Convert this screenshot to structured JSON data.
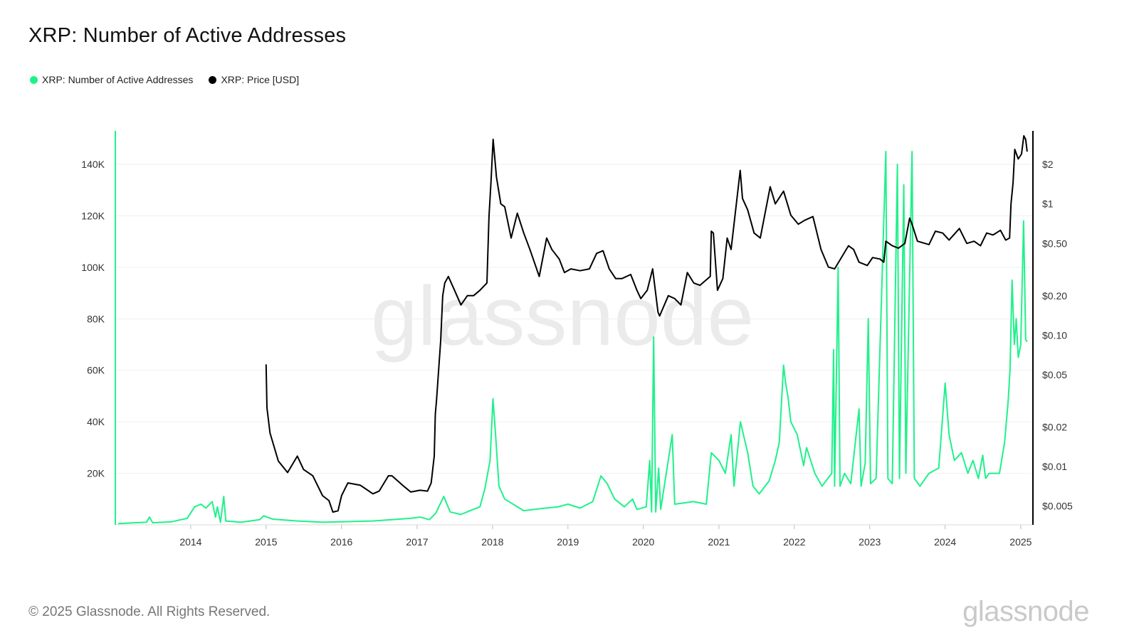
{
  "title": "XRP: Number of Active Addresses",
  "legend": [
    {
      "label": "XRP: Number of Active Addresses",
      "color": "#1ff18a",
      "icon": "dot-icon"
    },
    {
      "label": "XRP: Price [USD]",
      "color": "#000000",
      "icon": "dot-icon"
    }
  ],
  "watermark": "glassnode",
  "footer": "© 2025 Glassnode. All Rights Reserved.",
  "brand": "glassnode",
  "chart_data": {
    "type": "line",
    "x_ticks": [
      "2014",
      "2015",
      "2016",
      "2017",
      "2018",
      "2019",
      "2020",
      "2021",
      "2022",
      "2023",
      "2024",
      "2025"
    ],
    "y_left": {
      "ticks": [
        20000,
        40000,
        60000,
        80000,
        100000,
        120000,
        140000
      ],
      "tick_labels": [
        "20K",
        "40K",
        "60K",
        "80K",
        "100K",
        "120K",
        "140K"
      ],
      "range": [
        0,
        153000
      ]
    },
    "y_right": {
      "scale": "log",
      "ticks": [
        0.005,
        0.01,
        0.02,
        0.05,
        0.1,
        0.2,
        0.5,
        1,
        2
      ],
      "tick_labels": [
        "$0.005",
        "$0.01",
        "$0.02",
        "$0.05",
        "$0.10",
        "$0.20",
        "$0.50",
        "$1",
        "$2"
      ],
      "range": [
        0.0036,
        3.6
      ]
    },
    "grid": true,
    "legend_position": "top-left",
    "series": [
      {
        "name": "XRP: Number of Active Addresses",
        "axis": "left",
        "color": "#1ff18a",
        "points": [
          [
            "2013-01-15",
            500
          ],
          [
            "2013-06-01",
            1000
          ],
          [
            "2013-06-15",
            3000
          ],
          [
            "2013-07-01",
            800
          ],
          [
            "2013-10-01",
            1200
          ],
          [
            "2013-12-15",
            2500
          ],
          [
            "2014-01-20",
            7000
          ],
          [
            "2014-02-20",
            8000
          ],
          [
            "2014-03-15",
            6500
          ],
          [
            "2014-04-15",
            9000
          ],
          [
            "2014-05-01",
            3000
          ],
          [
            "2014-05-10",
            7000
          ],
          [
            "2014-05-25",
            1000
          ],
          [
            "2014-06-10",
            11000
          ],
          [
            "2014-06-20",
            1500
          ],
          [
            "2014-09-01",
            1000
          ],
          [
            "2014-12-01",
            2000
          ],
          [
            "2014-12-20",
            3500
          ],
          [
            "2015-02-01",
            2200
          ],
          [
            "2015-06-01",
            1500
          ],
          [
            "2015-10-01",
            1000
          ],
          [
            "2016-01-01",
            1200
          ],
          [
            "2016-06-01",
            1500
          ],
          [
            "2016-12-01",
            2500
          ],
          [
            "2017-01-15",
            3000
          ],
          [
            "2017-03-01",
            2000
          ],
          [
            "2017-04-01",
            4500
          ],
          [
            "2017-05-10",
            11000
          ],
          [
            "2017-06-10",
            5000
          ],
          [
            "2017-08-01",
            4000
          ],
          [
            "2017-09-15",
            5500
          ],
          [
            "2017-11-01",
            7000
          ],
          [
            "2017-11-25",
            14000
          ],
          [
            "2017-12-20",
            25000
          ],
          [
            "2018-01-03",
            49000
          ],
          [
            "2018-01-15",
            36000
          ],
          [
            "2018-02-01",
            15000
          ],
          [
            "2018-03-01",
            10000
          ],
          [
            "2018-06-01",
            5500
          ],
          [
            "2018-09-15",
            6500
          ],
          [
            "2018-11-15",
            7000
          ],
          [
            "2019-01-01",
            8000
          ],
          [
            "2019-03-01",
            6500
          ],
          [
            "2019-05-01",
            9000
          ],
          [
            "2019-06-10",
            19000
          ],
          [
            "2019-07-10",
            16000
          ],
          [
            "2019-08-15",
            10000
          ],
          [
            "2019-10-01",
            7000
          ],
          [
            "2019-11-10",
            10000
          ],
          [
            "2019-12-01",
            6000
          ],
          [
            "2020-01-15",
            7000
          ],
          [
            "2020-02-01",
            25000
          ],
          [
            "2020-02-10",
            5000
          ],
          [
            "2020-02-20",
            73000
          ],
          [
            "2020-03-01",
            5000
          ],
          [
            "2020-03-15",
            22000
          ],
          [
            "2020-03-25",
            6000
          ],
          [
            "2020-05-20",
            35000
          ],
          [
            "2020-06-01",
            8000
          ],
          [
            "2020-09-01",
            9000
          ],
          [
            "2020-11-01",
            8000
          ],
          [
            "2020-11-25",
            28000
          ],
          [
            "2021-01-01",
            25000
          ],
          [
            "2021-02-01",
            20000
          ],
          [
            "2021-03-01",
            35000
          ],
          [
            "2021-03-15",
            15000
          ],
          [
            "2021-04-15",
            40000
          ],
          [
            "2021-05-20",
            28000
          ],
          [
            "2021-06-15",
            15000
          ],
          [
            "2021-07-15",
            12000
          ],
          [
            "2021-09-01",
            17000
          ],
          [
            "2021-10-01",
            25000
          ],
          [
            "2021-10-20",
            32000
          ],
          [
            "2021-11-10",
            62000
          ],
          [
            "2021-11-20",
            55000
          ],
          [
            "2021-12-01",
            50000
          ],
          [
            "2021-12-15",
            40000
          ],
          [
            "2022-01-15",
            35000
          ],
          [
            "2022-02-15",
            23000
          ],
          [
            "2022-03-01",
            30000
          ],
          [
            "2022-04-10",
            20000
          ],
          [
            "2022-05-15",
            15000
          ],
          [
            "2022-07-01",
            20000
          ],
          [
            "2022-07-10",
            68000
          ],
          [
            "2022-07-15",
            15000
          ],
          [
            "2022-08-01",
            100000
          ],
          [
            "2022-08-10",
            15000
          ],
          [
            "2022-09-01",
            20000
          ],
          [
            "2022-10-01",
            16000
          ],
          [
            "2022-11-10",
            45000
          ],
          [
            "2022-11-20",
            15000
          ],
          [
            "2022-12-10",
            24000
          ],
          [
            "2022-12-25",
            80000
          ],
          [
            "2023-01-05",
            16000
          ],
          [
            "2023-02-01",
            18000
          ],
          [
            "2023-03-20",
            145000
          ],
          [
            "2023-03-30",
            18000
          ],
          [
            "2023-04-20",
            16000
          ],
          [
            "2023-05-15",
            140000
          ],
          [
            "2023-05-25",
            18000
          ],
          [
            "2023-06-15",
            132000
          ],
          [
            "2023-06-25",
            20000
          ],
          [
            "2023-07-25",
            145000
          ],
          [
            "2023-08-05",
            18000
          ],
          [
            "2023-09-01",
            15000
          ],
          [
            "2023-10-15",
            20000
          ],
          [
            "2023-12-01",
            22000
          ],
          [
            "2024-01-01",
            55000
          ],
          [
            "2024-01-20",
            35000
          ],
          [
            "2024-02-15",
            25000
          ],
          [
            "2024-03-20",
            28000
          ],
          [
            "2024-04-20",
            20000
          ],
          [
            "2024-05-15",
            25000
          ],
          [
            "2024-06-10",
            18000
          ],
          [
            "2024-07-01",
            27000
          ],
          [
            "2024-07-15",
            18000
          ],
          [
            "2024-08-01",
            20000
          ],
          [
            "2024-09-20",
            20000
          ],
          [
            "2024-10-15",
            32000
          ],
          [
            "2024-11-01",
            48000
          ],
          [
            "2024-11-10",
            60000
          ],
          [
            "2024-11-20",
            95000
          ],
          [
            "2024-12-01",
            70000
          ],
          [
            "2024-12-10",
            80000
          ],
          [
            "2024-12-20",
            65000
          ],
          [
            "2025-01-01",
            70000
          ],
          [
            "2025-01-15",
            118000
          ],
          [
            "2025-01-25",
            72000
          ],
          [
            "2025-02-01",
            71000
          ]
        ]
      },
      {
        "name": "XRP: Price [USD]",
        "axis": "right",
        "color": "#000000",
        "points": [
          [
            "2015-01-01",
            0.06
          ],
          [
            "2015-01-05",
            0.028
          ],
          [
            "2015-01-20",
            0.018
          ],
          [
            "2015-03-01",
            0.011
          ],
          [
            "2015-04-15",
            0.009
          ],
          [
            "2015-06-01",
            0.012
          ],
          [
            "2015-07-01",
            0.0095
          ],
          [
            "2015-08-15",
            0.0085
          ],
          [
            "2015-10-01",
            0.006
          ],
          [
            "2015-11-01",
            0.0055
          ],
          [
            "2015-11-20",
            0.0045
          ],
          [
            "2015-12-15",
            0.0046
          ],
          [
            "2016-01-01",
            0.006
          ],
          [
            "2016-02-01",
            0.0075
          ],
          [
            "2016-04-01",
            0.0072
          ],
          [
            "2016-06-01",
            0.0062
          ],
          [
            "2016-07-01",
            0.0065
          ],
          [
            "2016-08-15",
            0.0085
          ],
          [
            "2016-09-01",
            0.0085
          ],
          [
            "2016-11-01",
            0.007
          ],
          [
            "2016-12-01",
            0.0064
          ],
          [
            "2017-01-15",
            0.0066
          ],
          [
            "2017-02-20",
            0.0065
          ],
          [
            "2017-03-10",
            0.0075
          ],
          [
            "2017-03-25",
            0.012
          ],
          [
            "2017-03-30",
            0.025
          ],
          [
            "2017-04-05",
            0.032
          ],
          [
            "2017-04-25",
            0.09
          ],
          [
            "2017-05-05",
            0.2
          ],
          [
            "2017-05-15",
            0.25
          ],
          [
            "2017-06-01",
            0.28
          ],
          [
            "2017-07-01",
            0.22
          ],
          [
            "2017-08-01",
            0.17
          ],
          [
            "2017-09-01",
            0.2
          ],
          [
            "2017-10-01",
            0.2
          ],
          [
            "2017-11-01",
            0.22
          ],
          [
            "2017-12-05",
            0.25
          ],
          [
            "2017-12-15",
            0.8
          ],
          [
            "2017-12-25",
            1.5
          ],
          [
            "2018-01-04",
            3.1
          ],
          [
            "2018-01-20",
            1.6
          ],
          [
            "2018-02-10",
            1.0
          ],
          [
            "2018-03-01",
            0.95
          ],
          [
            "2018-04-01",
            0.55
          ],
          [
            "2018-05-01",
            0.85
          ],
          [
            "2018-06-01",
            0.6
          ],
          [
            "2018-07-01",
            0.45
          ],
          [
            "2018-08-15",
            0.28
          ],
          [
            "2018-09-20",
            0.55
          ],
          [
            "2018-10-15",
            0.45
          ],
          [
            "2018-11-20",
            0.38
          ],
          [
            "2018-12-15",
            0.3
          ],
          [
            "2019-01-15",
            0.32
          ],
          [
            "2019-03-01",
            0.31
          ],
          [
            "2019-04-15",
            0.32
          ],
          [
            "2019-05-20",
            0.42
          ],
          [
            "2019-06-20",
            0.44
          ],
          [
            "2019-07-20",
            0.32
          ],
          [
            "2019-08-20",
            0.27
          ],
          [
            "2019-09-20",
            0.27
          ],
          [
            "2019-11-01",
            0.29
          ],
          [
            "2019-12-01",
            0.22
          ],
          [
            "2019-12-20",
            0.19
          ],
          [
            "2020-01-20",
            0.22
          ],
          [
            "2020-02-15",
            0.32
          ],
          [
            "2020-03-12",
            0.15
          ],
          [
            "2020-03-20",
            0.14
          ],
          [
            "2020-05-01",
            0.2
          ],
          [
            "2020-06-01",
            0.19
          ],
          [
            "2020-07-01",
            0.17
          ],
          [
            "2020-08-01",
            0.3
          ],
          [
            "2020-09-01",
            0.25
          ],
          [
            "2020-10-01",
            0.24
          ],
          [
            "2020-11-20",
            0.28
          ],
          [
            "2020-11-25",
            0.62
          ],
          [
            "2020-12-05",
            0.6
          ],
          [
            "2020-12-25",
            0.22
          ],
          [
            "2021-01-20",
            0.27
          ],
          [
            "2021-02-10",
            0.55
          ],
          [
            "2021-03-01",
            0.45
          ],
          [
            "2021-04-14",
            1.8
          ],
          [
            "2021-04-25",
            1.1
          ],
          [
            "2021-05-20",
            0.9
          ],
          [
            "2021-06-20",
            0.6
          ],
          [
            "2021-07-20",
            0.55
          ],
          [
            "2021-09-06",
            1.35
          ],
          [
            "2021-10-01",
            1.0
          ],
          [
            "2021-11-10",
            1.25
          ],
          [
            "2021-12-15",
            0.82
          ],
          [
            "2022-01-20",
            0.7
          ],
          [
            "2022-02-20",
            0.75
          ],
          [
            "2022-04-01",
            0.8
          ],
          [
            "2022-05-10",
            0.45
          ],
          [
            "2022-06-15",
            0.33
          ],
          [
            "2022-07-15",
            0.32
          ],
          [
            "2022-09-20",
            0.48
          ],
          [
            "2022-10-15",
            0.45
          ],
          [
            "2022-11-10",
            0.36
          ],
          [
            "2022-12-20",
            0.34
          ],
          [
            "2023-01-15",
            0.39
          ],
          [
            "2023-02-20",
            0.38
          ],
          [
            "2023-03-10",
            0.36
          ],
          [
            "2023-03-20",
            0.52
          ],
          [
            "2023-04-20",
            0.48
          ],
          [
            "2023-05-20",
            0.46
          ],
          [
            "2023-06-20",
            0.5
          ],
          [
            "2023-07-13",
            0.78
          ],
          [
            "2023-07-25",
            0.7
          ],
          [
            "2023-08-20",
            0.52
          ],
          [
            "2023-10-15",
            0.49
          ],
          [
            "2023-11-15",
            0.62
          ],
          [
            "2023-12-20",
            0.6
          ],
          [
            "2024-01-20",
            0.53
          ],
          [
            "2024-03-10",
            0.65
          ],
          [
            "2024-04-15",
            0.5
          ],
          [
            "2024-05-20",
            0.52
          ],
          [
            "2024-06-20",
            0.48
          ],
          [
            "2024-07-20",
            0.6
          ],
          [
            "2024-08-20",
            0.58
          ],
          [
            "2024-09-25",
            0.63
          ],
          [
            "2024-10-20",
            0.53
          ],
          [
            "2024-11-08",
            0.55
          ],
          [
            "2024-11-15",
            1.0
          ],
          [
            "2024-11-25",
            1.45
          ],
          [
            "2024-12-03",
            2.6
          ],
          [
            "2024-12-20",
            2.2
          ],
          [
            "2025-01-05",
            2.4
          ],
          [
            "2025-01-16",
            3.3
          ],
          [
            "2025-01-25",
            3.1
          ],
          [
            "2025-02-01",
            2.5
          ]
        ]
      }
    ]
  }
}
